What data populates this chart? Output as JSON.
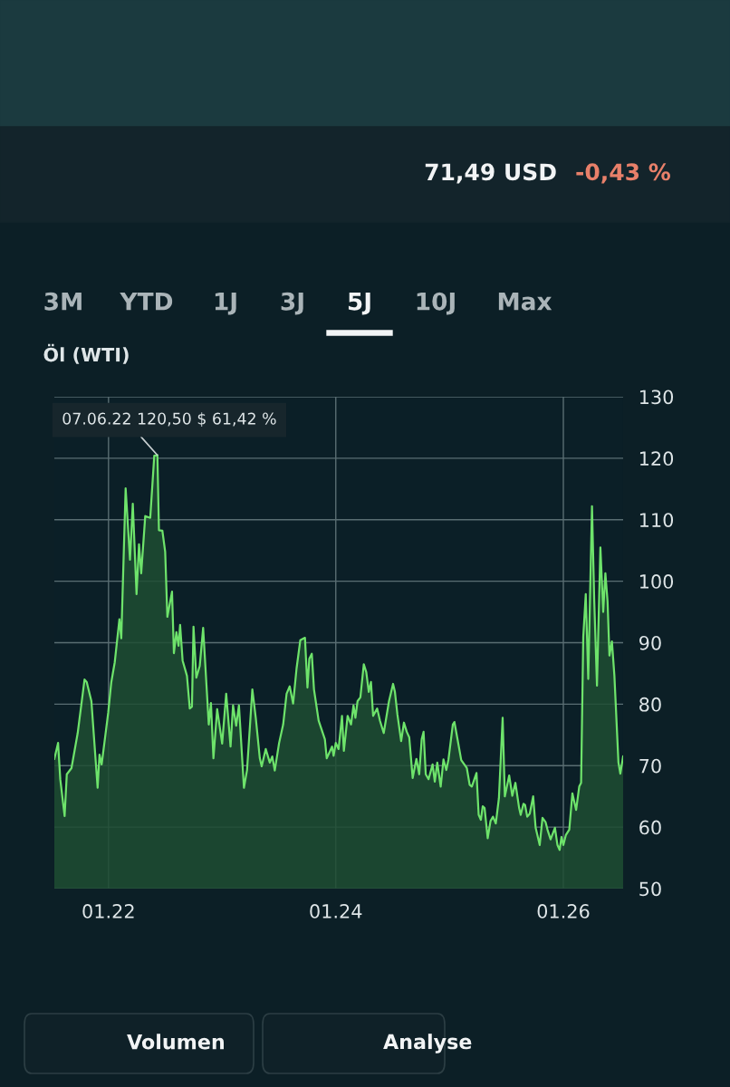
{
  "chart_data": {
    "type": "area",
    "title": "Öl (WTI)",
    "x": [
      "2021-07-11",
      "2021-07-23",
      "2021-07-30",
      "2021-08-13",
      "2021-08-20",
      "2021-09-04",
      "2021-09-24",
      "2021-10-16",
      "2021-10-23",
      "2021-11-07",
      "2021-11-27",
      "2021-12-03",
      "2021-12-10",
      "2021-12-31",
      "2022-01-10",
      "2022-01-21",
      "2022-02-05",
      "2022-02-11",
      "2022-02-25",
      "2022-03-11",
      "2022-03-20",
      "2022-04-01",
      "2022-04-09",
      "2022-04-16",
      "2022-04-29",
      "2022-05-15",
      "2022-05-28",
      "2022-06-07",
      "2022-06-12",
      "2022-06-23",
      "2022-07-02",
      "2022-07-09",
      "2022-07-24",
      "2022-07-30",
      "2022-08-07",
      "2022-08-14",
      "2022-08-19",
      "2022-08-27",
      "2022-09-10",
      "2022-09-19",
      "2022-09-26",
      "2022-10-01",
      "2022-10-10",
      "2022-10-21",
      "2022-11-01",
      "2022-11-19",
      "2022-11-26",
      "2022-12-04",
      "2022-12-16",
      "2023-01-01",
      "2023-01-14",
      "2023-01-28",
      "2023-02-05",
      "2023-02-15",
      "2023-02-24",
      "2023-03-12",
      "2023-03-22",
      "2023-04-08",
      "2023-04-19",
      "2023-05-02",
      "2023-05-08",
      "2023-05-21",
      "2023-06-03",
      "2023-06-11",
      "2023-06-19",
      "2023-07-03",
      "2023-07-16",
      "2023-07-27",
      "2023-08-06",
      "2023-08-17",
      "2023-08-28",
      "2023-09-09",
      "2023-09-24",
      "2023-10-02",
      "2023-10-08",
      "2023-10-16",
      "2023-10-23",
      "2023-11-07",
      "2023-11-27",
      "2023-12-03",
      "2023-12-20",
      "2023-12-25",
      "2024-01-01",
      "2024-01-10",
      "2024-01-21",
      "2024-01-27",
      "2024-02-08",
      "2024-02-19",
      "2024-02-27",
      "2024-03-04",
      "2024-03-11",
      "2024-03-20",
      "2024-03-31",
      "2024-04-08",
      "2024-04-16",
      "2024-04-23",
      "2024-04-30",
      "2024-05-13",
      "2024-05-22",
      "2024-06-03",
      "2024-06-20",
      "2024-07-03",
      "2024-07-09",
      "2024-07-17",
      "2024-07-29",
      "2024-08-07",
      "2024-08-16",
      "2024-08-24",
      "2024-09-04",
      "2024-09-16",
      "2024-09-25",
      "2024-10-03",
      "2024-10-09",
      "2024-10-16",
      "2024-10-25",
      "2024-11-07",
      "2024-11-14",
      "2024-11-22",
      "2024-12-03",
      "2024-12-12",
      "2024-12-21",
      "2024-12-28",
      "2025-01-11",
      "2025-01-16",
      "2025-01-26",
      "2025-02-07",
      "2025-02-25",
      "2025-03-06",
      "2025-03-13",
      "2025-03-28",
      "2025-04-04",
      "2025-04-11",
      "2025-04-17",
      "2025-04-23",
      "2025-05-03",
      "2025-05-12",
      "2025-05-20",
      "2025-05-29",
      "2025-06-08",
      "2025-06-20",
      "2025-06-27",
      "2025-07-11",
      "2025-07-21",
      "2025-07-31",
      "2025-08-12",
      "2025-08-17",
      "2025-08-26",
      "2025-08-31",
      "2025-09-07",
      "2025-09-15",
      "2025-09-26",
      "2025-10-04",
      "2025-10-17",
      "2025-10-26",
      "2025-11-05",
      "2025-11-11",
      "2025-11-21",
      "2025-12-05",
      "2025-12-13",
      "2025-12-20",
      "2025-12-26",
      "2026-01-01",
      "2026-01-09",
      "2026-01-20",
      "2026-01-30",
      "2026-02-11",
      "2026-02-21",
      "2026-02-27",
      "2026-03-06",
      "2026-03-14",
      "2026-03-22",
      "2026-04-03",
      "2026-04-10",
      "2026-04-19",
      "2026-04-30",
      "2026-05-09",
      "2026-05-16",
      "2026-05-23",
      "2026-05-29",
      "2026-06-06",
      "2026-06-14",
      "2026-06-27",
      "2026-07-03",
      "2026-07-12"
    ],
    "series": [
      {
        "color": "#6ee36b",
        "values": [
          71.1,
          73.7,
          67.8,
          61.8,
          68.6,
          69.6,
          75.3,
          84.0,
          83.6,
          80.5,
          66.4,
          71.8,
          70.2,
          78.6,
          83.6,
          86.8,
          93.8,
          90.7,
          115.1,
          103.5,
          112.6,
          97.9,
          106.0,
          101.3,
          110.6,
          110.3,
          120.4,
          120.5,
          108.3,
          108.2,
          104.8,
          94.2,
          98.3,
          88.3,
          91.7,
          89.5,
          92.9,
          87.1,
          84.6,
          79.3,
          79.6,
          92.6,
          84.3,
          86.2,
          92.4,
          76.7,
          80.2,
          71.2,
          79.2,
          73.6,
          81.7,
          73.1,
          79.8,
          76.5,
          79.8,
          66.4,
          69.3,
          82.4,
          77.8,
          71.2,
          69.9,
          72.7,
          70.5,
          71.5,
          69.2,
          73.7,
          76.7,
          81.7,
          82.9,
          80.1,
          85.8,
          90.4,
          90.8,
          82.7,
          87.4,
          88.2,
          82.4,
          77.3,
          74.3,
          71.2,
          73.1,
          71.6,
          73.7,
          72.7,
          78.1,
          72.4,
          78.1,
          76.7,
          79.8,
          77.8,
          80.5,
          81.1,
          86.5,
          85.2,
          82.0,
          83.6,
          78.1,
          79.3,
          77.3,
          75.3,
          80.5,
          83.3,
          82.0,
          78.3,
          74.0,
          77.0,
          75.5,
          74.6,
          68.0,
          71.1,
          68.6,
          74.3,
          75.5,
          68.6,
          67.8,
          70.2,
          67.4,
          70.5,
          66.6,
          71.0,
          69.3,
          71.0,
          76.7,
          77.1,
          74.3,
          70.9,
          69.6,
          66.9,
          66.6,
          68.8,
          62.0,
          61.2,
          63.4,
          63.1,
          58.2,
          61.0,
          61.7,
          60.6,
          64.7,
          77.8,
          65.0,
          68.4,
          65.1,
          67.2,
          63.1,
          62.0,
          63.8,
          63.6,
          61.7,
          62.2,
          65.0,
          59.9,
          57.1,
          61.5,
          60.8,
          59.6,
          58.0,
          59.9,
          57.1,
          56.3,
          58.4,
          57.1,
          58.7,
          59.6,
          65.5,
          62.8,
          66.6,
          67.2,
          91.0,
          97.9,
          84.1,
          112.2,
          97.2,
          83.0,
          105.5,
          95.0,
          101.3,
          96.7,
          87.9,
          90.2,
          84.6,
          70.5,
          68.7,
          71.5
        ]
      }
    ],
    "xlim": [
      "2021-07-11",
      "2026-07-12"
    ],
    "xticks": [
      {
        "value": "2022-01",
        "label": "01.22"
      },
      {
        "value": "2024-01",
        "label": "01.24"
      },
      {
        "value": "2026-01",
        "label": "01.26"
      }
    ],
    "ylim": [
      50,
      130
    ],
    "yticks": [
      50,
      60,
      70,
      80,
      90,
      100,
      110,
      120,
      130
    ],
    "grid": true,
    "annotations": [
      {
        "text": "07.06.22 120,50 $ 61,42 %",
        "x": "2022-06-07",
        "y": 120.5
      },
      "71,49 USD",
      "-0,43 %",
      "3M",
      "YTD",
      "1J",
      "3J",
      "5J",
      "10J",
      "Max",
      "Volumen",
      "Analyse"
    ]
  }
}
